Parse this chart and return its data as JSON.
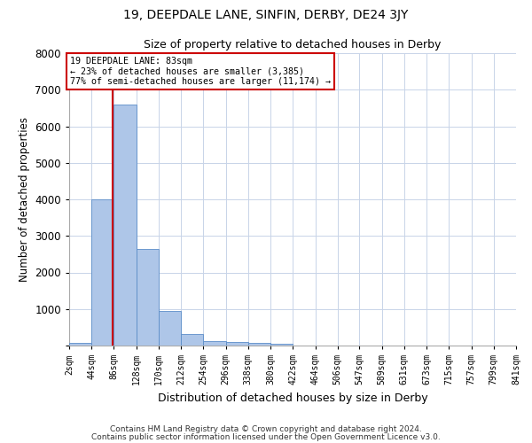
{
  "title1": "19, DEEPDALE LANE, SINFIN, DERBY, DE24 3JY",
  "title2": "Size of property relative to detached houses in Derby",
  "xlabel": "Distribution of detached houses by size in Derby",
  "ylabel": "Number of detached properties",
  "bar_color": "#aec6e8",
  "bar_edge_color": "#5b8dc8",
  "bin_edges": [
    2,
    44,
    86,
    128,
    170,
    212,
    254,
    296,
    338,
    380,
    422,
    464,
    506,
    547,
    589,
    631,
    673,
    715,
    757,
    799,
    841
  ],
  "bar_heights": [
    75,
    4000,
    6600,
    2650,
    950,
    325,
    130,
    100,
    75,
    50,
    0,
    0,
    0,
    0,
    0,
    0,
    0,
    0,
    0,
    0
  ],
  "tick_labels": [
    "2sqm",
    "44sqm",
    "86sqm",
    "128sqm",
    "170sqm",
    "212sqm",
    "254sqm",
    "296sqm",
    "338sqm",
    "380sqm",
    "422sqm",
    "464sqm",
    "506sqm",
    "547sqm",
    "589sqm",
    "631sqm",
    "673sqm",
    "715sqm",
    "757sqm",
    "799sqm",
    "841sqm"
  ],
  "property_size": 83,
  "red_line_color": "#cc0000",
  "annotation_line1": "19 DEEPDALE LANE: 83sqm",
  "annotation_line2": "← 23% of detached houses are smaller (3,385)",
  "annotation_line3": "77% of semi-detached houses are larger (11,174) →",
  "annotation_box_color": "#cc0000",
  "ylim": [
    0,
    8000
  ],
  "yticks": [
    0,
    1000,
    2000,
    3000,
    4000,
    5000,
    6000,
    7000,
    8000
  ],
  "footer1": "Contains HM Land Registry data © Crown copyright and database right 2024.",
  "footer2": "Contains public sector information licensed under the Open Government Licence v3.0.",
  "background_color": "#ffffff",
  "grid_color": "#c8d4e8"
}
